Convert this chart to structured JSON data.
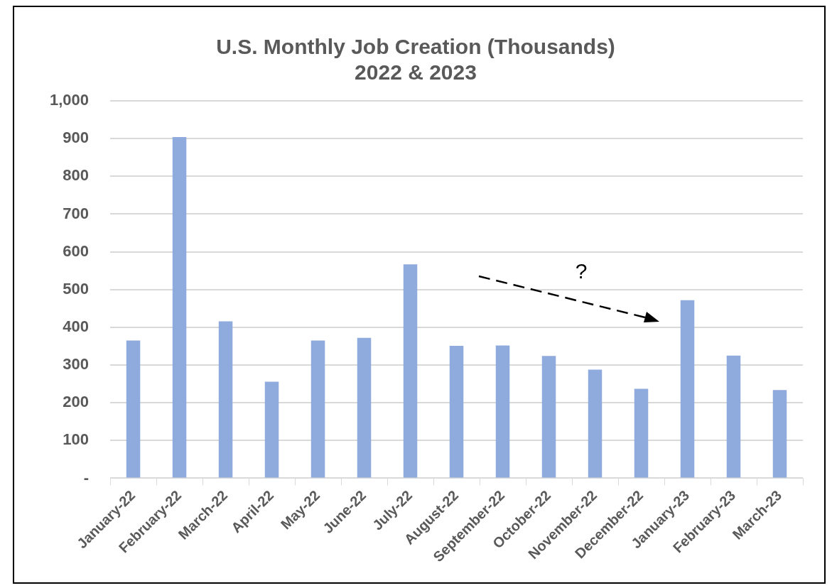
{
  "chart_data": {
    "type": "bar",
    "title": "U.S. Monthly Job Creation (Thousands)\n2022 & 2023",
    "categories": [
      "January-22",
      "February-22",
      "March-22",
      "April-22",
      "May-22",
      "June-22",
      "July-22",
      "August-22",
      "September-22",
      "October-22",
      "November-22",
      "December-22",
      "January-23",
      "February-23",
      "March-23"
    ],
    "values": [
      365,
      904,
      416,
      256,
      365,
      372,
      567,
      351,
      352,
      324,
      288,
      237,
      472,
      325,
      234
    ],
    "color": "#8faadc",
    "ylim": [
      0,
      1000
    ],
    "yticks": [
      {
        "value": 0,
        "label": "-"
      },
      100,
      200,
      300,
      400,
      500,
      600,
      700,
      800,
      900,
      {
        "value": 1000,
        "label": "1,000"
      }
    ],
    "grid": "y",
    "legend": false,
    "annotations": [
      "?"
    ]
  }
}
